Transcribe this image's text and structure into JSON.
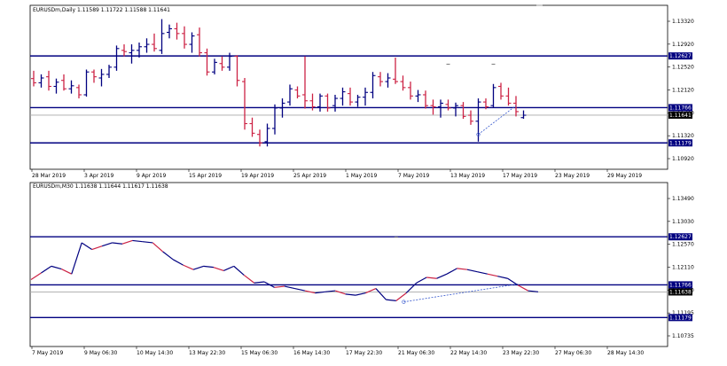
{
  "colors": {
    "bull": "#000080",
    "bear": "#cc2244",
    "level": "#000080",
    "trend": "#3355cc",
    "current": "#a8a8a8",
    "axis": "#000000"
  },
  "top_chart": {
    "title": "EURUSDm,Daily  1.11589 1.11722 1.11588 1.11641",
    "price_labels": [
      "1.13320",
      "1.12920",
      "1.12520",
      "1.12120",
      "1.11720",
      "1.11320",
      "1.10920"
    ],
    "date_labels": [
      "28 Mar 2019",
      "3 Apr 2019",
      "9 Apr 2019",
      "15 Apr 2019",
      "19 Apr 2019",
      "25 Apr 2019",
      "1 May 2019",
      "7 May 2019",
      "13 May 2019",
      "17 May 2019",
      "23 May 2019",
      "29 May 2019"
    ],
    "levels": [
      {
        "label": "1.12627",
        "price": 1.12627
      },
      {
        "label": "1.11766",
        "price": 1.11766
      },
      {
        "label": "1.11179",
        "price": 1.11179
      }
    ],
    "current": {
      "label": "1.11641",
      "price": 1.11641
    },
    "chart_data": {
      "type": "bar",
      "ylim": [
        1.1074,
        1.1347
      ],
      "ohlc": [
        [
          1.1225,
          1.1238,
          1.1212,
          1.1218
        ],
        [
          1.1218,
          1.1232,
          1.121,
          1.1226
        ],
        [
          1.1228,
          1.1238,
          1.1205,
          1.1212
        ],
        [
          1.1212,
          1.1225,
          1.12,
          1.1219
        ],
        [
          1.1222,
          1.1232,
          1.1205,
          1.1208
        ],
        [
          1.1208,
          1.1222,
          1.12,
          1.1213
        ],
        [
          1.121,
          1.1215,
          1.1192,
          1.1198
        ],
        [
          1.1198,
          1.124,
          1.1195,
          1.1236
        ],
        [
          1.1236,
          1.124,
          1.1218,
          1.1228
        ],
        [
          1.1226,
          1.1241,
          1.1212,
          1.1232
        ],
        [
          1.1232,
          1.1248,
          1.1226,
          1.1244
        ],
        [
          1.1244,
          1.128,
          1.1238,
          1.1275
        ],
        [
          1.1272,
          1.1282,
          1.1262,
          1.127
        ],
        [
          1.1268,
          1.1282,
          1.125,
          1.1272
        ],
        [
          1.1272,
          1.1285,
          1.126,
          1.1278
        ],
        [
          1.1278,
          1.1292,
          1.1268,
          1.1282
        ],
        [
          1.1282,
          1.13,
          1.127,
          1.1275
        ],
        [
          1.1272,
          1.1324,
          1.1266,
          1.13
        ],
        [
          1.1302,
          1.1315,
          1.1292,
          1.1308
        ],
        [
          1.1308,
          1.1318,
          1.129,
          1.13
        ],
        [
          1.13,
          1.1312,
          1.1275,
          1.1282
        ],
        [
          1.1282,
          1.1302,
          1.1268,
          1.1296
        ],
        [
          1.1298,
          1.131,
          1.1262,
          1.1268
        ],
        [
          1.1268,
          1.1275,
          1.123,
          1.1236
        ],
        [
          1.1236,
          1.1258,
          1.1232,
          1.1252
        ],
        [
          1.125,
          1.1262,
          1.1238,
          1.1244
        ],
        [
          1.1244,
          1.1268,
          1.1238,
          1.1262
        ],
        [
          1.1262,
          1.1264,
          1.1212,
          1.1222
        ],
        [
          1.122,
          1.1226,
          1.114,
          1.115
        ],
        [
          1.115,
          1.116,
          1.1128,
          1.1134
        ],
        [
          1.1132,
          1.114,
          1.1112,
          1.1118
        ],
        [
          1.112,
          1.115,
          1.1112,
          1.1142
        ],
        [
          1.1142,
          1.1182,
          1.1132,
          1.1176
        ],
        [
          1.1176,
          1.1192,
          1.116,
          1.1184
        ],
        [
          1.1186,
          1.1215,
          1.118,
          1.1208
        ],
        [
          1.1206,
          1.1212,
          1.1192,
          1.1196
        ],
        [
          1.1198,
          1.1262,
          1.1175,
          1.1188
        ],
        [
          1.1188,
          1.12,
          1.1172,
          1.1178
        ],
        [
          1.1178,
          1.12,
          1.117,
          1.1196
        ],
        [
          1.1196,
          1.12,
          1.117,
          1.1176
        ],
        [
          1.118,
          1.1198,
          1.117,
          1.1192
        ],
        [
          1.1192,
          1.121,
          1.118,
          1.1203
        ],
        [
          1.12,
          1.121,
          1.118,
          1.1186
        ],
        [
          1.1186,
          1.1198,
          1.1178,
          1.1194
        ],
        [
          1.1194,
          1.121,
          1.118,
          1.1202
        ],
        [
          1.1202,
          1.1236,
          1.1192,
          1.123
        ],
        [
          1.1228,
          1.1236,
          1.1212,
          1.122
        ],
        [
          1.122,
          1.1234,
          1.121,
          1.1226
        ],
        [
          1.1224,
          1.126,
          1.1216,
          1.122
        ],
        [
          1.122,
          1.123,
          1.1205,
          1.121
        ],
        [
          1.121,
          1.122,
          1.119,
          1.1196
        ],
        [
          1.1196,
          1.1206,
          1.1186,
          1.1198
        ],
        [
          1.1198,
          1.1205,
          1.1175,
          1.118
        ],
        [
          1.118,
          1.119,
          1.1165,
          1.1178
        ],
        [
          1.1178,
          1.119,
          1.116,
          1.1184
        ],
        [
          1.1182,
          1.119,
          1.1172,
          1.1176
        ],
        [
          1.1176,
          1.1185,
          1.1162,
          1.118
        ],
        [
          1.118,
          1.1186,
          1.1158,
          1.1162
        ],
        [
          1.1164,
          1.1172,
          1.1148,
          1.1154
        ],
        [
          1.1154,
          1.1192,
          1.112,
          1.1186
        ],
        [
          1.1186,
          1.1192,
          1.1174,
          1.1178
        ],
        [
          1.118,
          1.1216,
          1.1176,
          1.121
        ],
        [
          1.1212,
          1.1218,
          1.119,
          1.1196
        ],
        [
          1.1196,
          1.121,
          1.118,
          1.1184
        ],
        [
          1.1184,
          1.1196,
          1.1162,
          1.117
        ],
        [
          1.116,
          1.1172,
          1.1158,
          1.1164
        ]
      ],
      "overlay_marks": [
        [
          55,
          1.1249
        ],
        [
          61,
          1.1249
        ]
      ]
    }
  },
  "bottom_chart": {
    "title": "EURUSDm,M30  1.11638 1.11644 1.11617 1.11638",
    "price_labels": [
      "1.13490",
      "1.13030",
      "1.12570",
      "1.12110",
      "1.11650",
      "1.11195",
      "1.10735"
    ],
    "date_labels": [
      "7 May 2019",
      "9 May 06:30",
      "10 May 14:30",
      "13 May 22:30",
      "15 May 06:30",
      "16 May 14:30",
      "17 May 22:30",
      "21 May 06:30",
      "22 May 14:30",
      "23 May 22:30",
      "27 May 06:30",
      "28 May 14:30"
    ],
    "levels": [
      {
        "label": "1.12627",
        "price": 1.12627
      },
      {
        "label": "1.11766",
        "price": 1.11766
      },
      {
        "label": "1.11179",
        "price": 1.11179
      }
    ],
    "current": {
      "label": "1.11638",
      "price": 1.11638
    },
    "chart_data": {
      "type": "line",
      "ylim": [
        1.1066,
        1.136
      ],
      "x": [
        0,
        2,
        4,
        6,
        8,
        10,
        12,
        14,
        16,
        18,
        20,
        22,
        24,
        26,
        28,
        30,
        32,
        34,
        36,
        38,
        40,
        42,
        44,
        46,
        48,
        50,
        52,
        54,
        56,
        58,
        60,
        62,
        64,
        66,
        68,
        70,
        72,
        74,
        76,
        78,
        80,
        82,
        84,
        86,
        88,
        90,
        92,
        94,
        96,
        98,
        100
      ],
      "values": [
        1.1186,
        1.1198,
        1.121,
        1.1205,
        1.1196,
        1.1252,
        1.124,
        1.1246,
        1.1252,
        1.125,
        1.1256,
        1.1254,
        1.1252,
        1.1236,
        1.1222,
        1.1212,
        1.1204,
        1.121,
        1.1208,
        1.1202,
        1.121,
        1.1194,
        1.118,
        1.1182,
        1.1172,
        1.1174,
        1.117,
        1.1166,
        1.1162,
        1.1164,
        1.1166,
        1.116,
        1.1158,
        1.1162,
        1.117,
        1.115,
        1.1148,
        1.1162,
        1.118,
        1.119,
        1.1188,
        1.1196,
        1.1206,
        1.1204,
        1.12,
        1.1196,
        1.1192,
        1.1188,
        1.1176,
        1.1166,
        1.1164
      ]
    }
  }
}
